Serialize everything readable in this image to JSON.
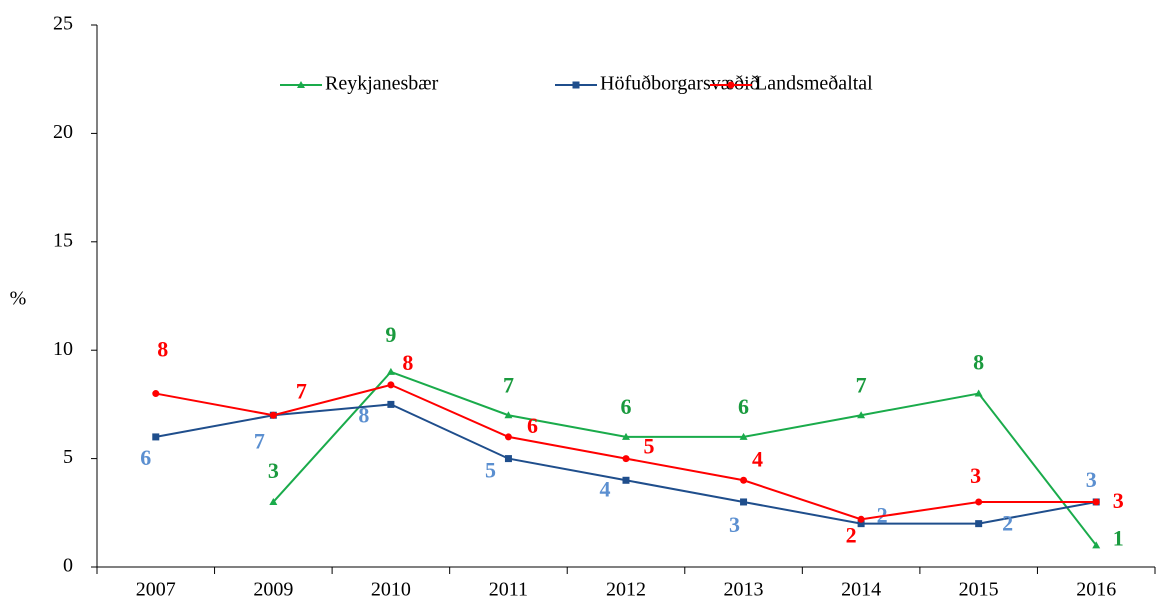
{
  "chart_data": {
    "type": "line",
    "ylabel": "%",
    "categories": [
      "2007",
      "2009",
      "2010",
      "2011",
      "2012",
      "2013",
      "2014",
      "2015",
      "2016"
    ],
    "series": [
      {
        "name": "Reykjanesbær",
        "color": "#1aab4b",
        "label_color": "#1a9a3e",
        "marker": "triangle",
        "values": [
          null,
          3,
          9,
          7,
          6,
          6,
          7,
          8,
          1
        ]
      },
      {
        "name": "Höfuðborgarsvæðið",
        "color": "#1f4e8c",
        "label_color": "#5b8fd0",
        "marker": "square",
        "values": [
          6,
          7,
          7.5,
          5,
          4,
          3,
          2,
          2,
          3
        ],
        "value_labels": [
          "6",
          "7",
          "8",
          "5",
          "4",
          "3",
          "2",
          "2",
          "3"
        ]
      },
      {
        "name": "Landsmeðaltal",
        "color": "#ff0000",
        "label_color": "#ff0000",
        "marker": "circle",
        "values": [
          8,
          7,
          8.4,
          6,
          5,
          4,
          2.2,
          3,
          3
        ],
        "value_labels": [
          "8",
          "7",
          "8",
          "6",
          "5",
          "4",
          "2",
          "3",
          "3"
        ]
      }
    ],
    "ylim": [
      0,
      25
    ],
    "yticks": [
      0,
      5,
      10,
      15,
      20,
      25
    ],
    "grid": false,
    "legend": "top"
  }
}
